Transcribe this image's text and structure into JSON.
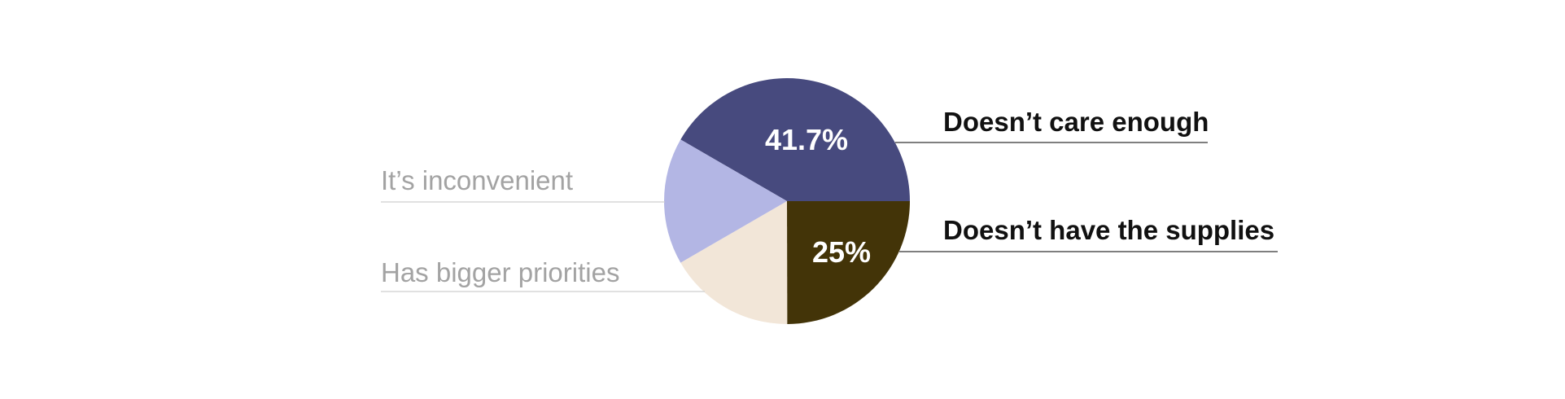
{
  "chart_data": {
    "type": "pie",
    "categories": [
      "Doesn’t care enough",
      "Doesn’t have the supplies",
      "Has bigger priorities",
      "It’s inconvenient"
    ],
    "values": [
      41.7,
      25,
      16.7,
      16.7
    ],
    "value_labels": [
      "41.7%",
      "25%",
      null,
      null
    ],
    "colors": [
      "#474a7e",
      "#433408",
      "#f2e6d8",
      "#b3b6e4"
    ]
  }
}
